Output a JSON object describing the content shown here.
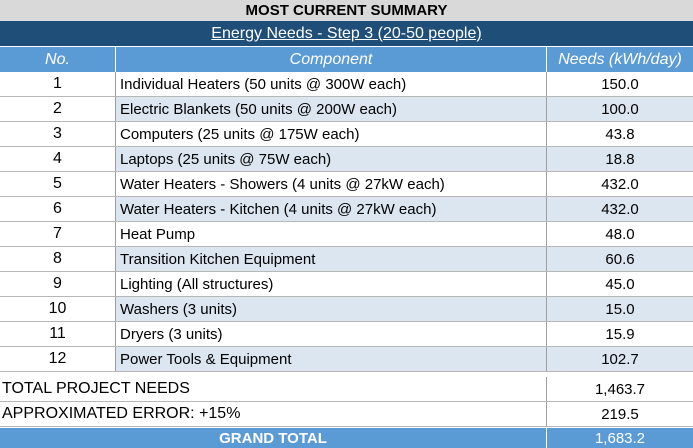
{
  "title": "MOST CURRENT SUMMARY",
  "subtitle": "Energy Needs - Step 3 (20-50 people)",
  "headers": {
    "no": "No.",
    "component": "Component",
    "needs": "Needs (kWh/day)"
  },
  "rows": [
    {
      "no": "1",
      "component": "Individual Heaters (50 units @ 300W each)",
      "needs": "150.0"
    },
    {
      "no": "2",
      "component": "Electric Blankets (50 units @ 200W each)",
      "needs": "100.0"
    },
    {
      "no": "3",
      "component": "Computers (25 units @ 175W each)",
      "needs": "43.8"
    },
    {
      "no": "4",
      "component": "Laptops (25 units @ 75W each)",
      "needs": "18.8"
    },
    {
      "no": "5",
      "component": "Water Heaters - Showers (4 units @ 27kW each)",
      "needs": "432.0"
    },
    {
      "no": "6",
      "component": "Water Heaters - Kitchen (4 units @ 27kW each)",
      "needs": "432.0"
    },
    {
      "no": "7",
      "component": "Heat Pump",
      "needs": "48.0"
    },
    {
      "no": "8",
      "component": "Transition Kitchen Equipment",
      "needs": "60.6"
    },
    {
      "no": "9",
      "component": "Lighting (All structures)",
      "needs": "45.0"
    },
    {
      "no": "10",
      "component": "Washers (3 units)",
      "needs": "15.0"
    },
    {
      "no": "11",
      "component": "Dryers (3 units)",
      "needs": "15.9"
    },
    {
      "no": "12",
      "component": "Power Tools & Equipment",
      "needs": "102.7"
    }
  ],
  "totals": {
    "project_label": "TOTAL PROJECT NEEDS",
    "project_value": "1,463.7",
    "error_label": "APPROXIMATED ERROR: +15%",
    "error_value": "219.5",
    "grand_label": "GRAND TOTAL",
    "grand_value": "1,683.2"
  }
}
